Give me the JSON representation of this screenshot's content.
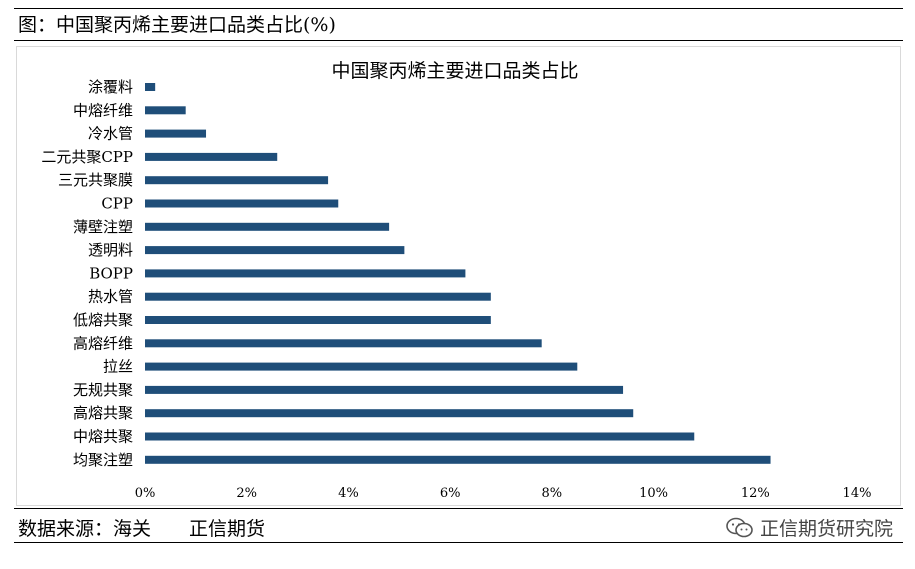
{
  "header": {
    "title": "图：中国聚丙烯主要进口品类占比(%)"
  },
  "footer": {
    "source": "数据来源：海关　　正信期货",
    "brand": "正信期货研究院",
    "brand_icon": "wechat-icon"
  },
  "chart_data": {
    "type": "bar",
    "orientation": "horizontal",
    "title": "中国聚丙烯主要进口品类占比",
    "categories": [
      "涂覆料",
      "中熔纤维",
      "冷水管",
      "二元共聚CPP",
      "三元共聚膜",
      "CPP",
      "薄壁注塑",
      "透明料",
      "BOPP",
      "热水管",
      "低熔共聚",
      "高熔纤维",
      "拉丝",
      "无规共聚",
      "高熔共聚",
      "中熔共聚",
      "均聚注塑"
    ],
    "values": [
      0.2,
      0.8,
      1.2,
      2.6,
      3.6,
      3.8,
      4.8,
      5.1,
      6.3,
      6.8,
      6.8,
      7.8,
      8.5,
      9.4,
      9.6,
      10.8,
      12.3
    ],
    "xlim": [
      0,
      14
    ],
    "ticks": [
      "0%",
      "2%",
      "4%",
      "6%",
      "8%",
      "10%",
      "12%",
      "14%"
    ],
    "tick_values": [
      0,
      2,
      4,
      6,
      8,
      10,
      12,
      14
    ],
    "bar_color": "#1f4e79",
    "grid": false,
    "legend": "none"
  }
}
